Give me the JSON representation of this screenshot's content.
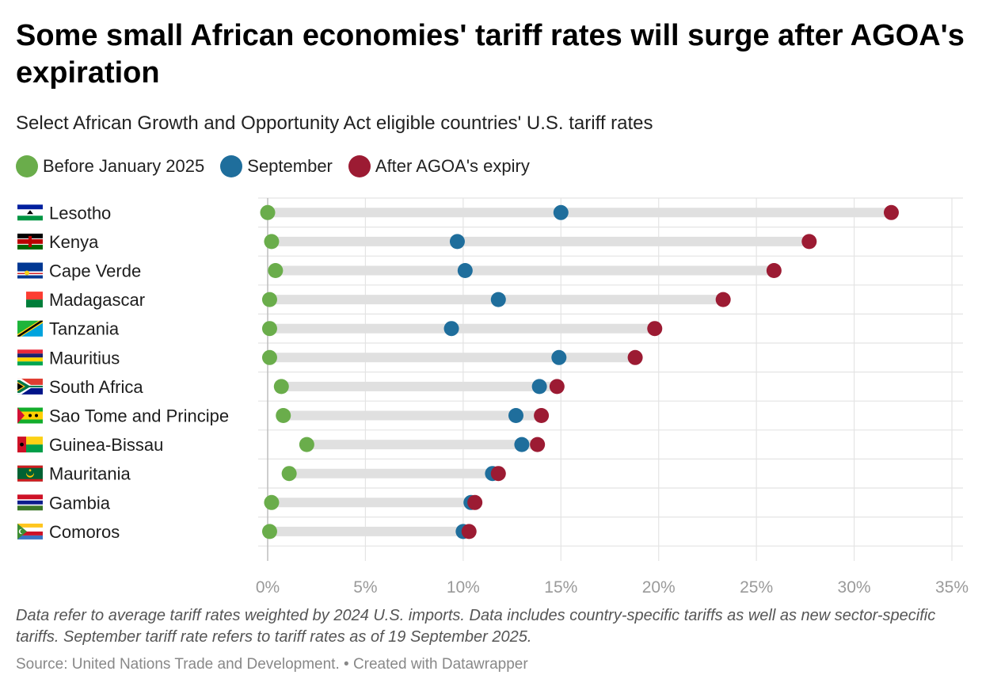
{
  "title": "Some small African economies' tariff rates will surge after AGOA's expiration",
  "subtitle": "Select African Growth and Opportunity Act eligible countries' U.S. tariff rates",
  "notes": "Data refer to average tariff rates weighted by 2024 U.S. imports. Data includes country-specific tariffs as well as new sector-specific tariffs. September tariff rate refers to tariff rates as of 19 September 2025.",
  "source": "Source: United Nations Trade and Development. • Created with Datawrapper",
  "colors": {
    "before": "#6aad4b",
    "september": "#1f6e9c",
    "after": "#9c1b33",
    "track": "#e0e0e0",
    "grid": "#e4e4e4",
    "tick": "#9a9a9a"
  },
  "chart_data": {
    "type": "dot-range",
    "series": [
      {
        "key": "before",
        "name": "Before January 2025",
        "color": "#6aad4b"
      },
      {
        "key": "september",
        "name": "September",
        "color": "#1f6e9c"
      },
      {
        "key": "after",
        "name": "After AGOA's expiry",
        "color": "#9c1b33"
      }
    ],
    "xlim": [
      0,
      35
    ],
    "xticks": [
      0,
      5,
      10,
      15,
      20,
      25,
      30,
      35
    ],
    "xtick_labels": [
      "0%",
      "5%",
      "10%",
      "15%",
      "20%",
      "25%",
      "30%",
      "35%"
    ],
    "legend_position": "top-left",
    "grid": true,
    "rows": [
      {
        "country": "Lesotho",
        "flag": "lesotho-flag-icon",
        "before": 0.0,
        "september": 15.0,
        "after": 31.9
      },
      {
        "country": "Kenya",
        "flag": "kenya-flag-icon",
        "before": 0.2,
        "september": 9.7,
        "after": 27.7
      },
      {
        "country": "Cape Verde",
        "flag": "cape-verde-flag-icon",
        "before": 0.4,
        "september": 10.1,
        "after": 25.9
      },
      {
        "country": "Madagascar",
        "flag": "madagascar-flag-icon",
        "before": 0.1,
        "september": 11.8,
        "after": 23.3
      },
      {
        "country": "Tanzania",
        "flag": "tanzania-flag-icon",
        "before": 0.1,
        "september": 9.4,
        "after": 19.8
      },
      {
        "country": "Mauritius",
        "flag": "mauritius-flag-icon",
        "before": 0.1,
        "september": 14.9,
        "after": 18.8
      },
      {
        "country": "South Africa",
        "flag": "south-africa-flag-icon",
        "before": 0.7,
        "september": 13.9,
        "after": 14.8
      },
      {
        "country": "Sao Tome and Principe",
        "flag": "sao-tome-flag-icon",
        "before": 0.8,
        "september": 12.7,
        "after": 14.0
      },
      {
        "country": "Guinea-Bissau",
        "flag": "guinea-bissau-flag-icon",
        "before": 2.0,
        "september": 13.0,
        "after": 13.8
      },
      {
        "country": "Mauritania",
        "flag": "mauritania-flag-icon",
        "before": 1.1,
        "september": 11.5,
        "after": 11.8
      },
      {
        "country": "Gambia",
        "flag": "gambia-flag-icon",
        "before": 0.2,
        "september": 10.4,
        "after": 10.6
      },
      {
        "country": "Comoros",
        "flag": "comoros-flag-icon",
        "before": 0.1,
        "september": 10.0,
        "after": 10.3
      }
    ]
  }
}
